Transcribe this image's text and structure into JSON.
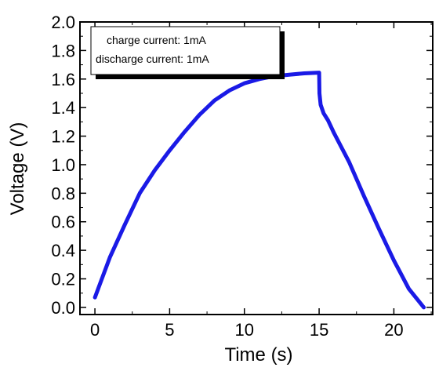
{
  "chart_data": {
    "type": "line",
    "xlabel": "Time (s)",
    "ylabel": "Voltage (V)",
    "xlim": [
      -1,
      22.6
    ],
    "ylim": [
      -0.05,
      2.0
    ],
    "xticks": [
      0,
      5,
      10,
      15,
      20
    ],
    "xtick_labels": [
      "0",
      "5",
      "10",
      "15",
      "20"
    ],
    "yticks": [
      0.0,
      0.2,
      0.4,
      0.6,
      0.8,
      1.0,
      1.2,
      1.4,
      1.6,
      1.8,
      2.0
    ],
    "ytick_labels": [
      "0.0",
      "0.2",
      "0.4",
      "0.6",
      "0.8",
      "1.0",
      "1.2",
      "1.4",
      "1.6",
      "1.8",
      "2.0"
    ],
    "grid": false,
    "legend": {
      "location": "top-left",
      "lines": [
        "charge current: 1mA",
        "discharge current: 1mA"
      ]
    },
    "series": [
      {
        "color": "#1a1ae6",
        "x": [
          0,
          1,
          2,
          3,
          4,
          5,
          6,
          7,
          8,
          9,
          10,
          11,
          12,
          13,
          14,
          15,
          15.02,
          15.1,
          15.3,
          15.6,
          16,
          17,
          18,
          19,
          20,
          21,
          22
        ],
        "y": [
          0.07,
          0.35,
          0.58,
          0.8,
          0.96,
          1.1,
          1.23,
          1.35,
          1.45,
          1.52,
          1.57,
          1.6,
          1.62,
          1.63,
          1.64,
          1.645,
          1.5,
          1.42,
          1.36,
          1.31,
          1.22,
          1.02,
          0.78,
          0.55,
          0.33,
          0.13,
          0.0
        ]
      }
    ]
  }
}
